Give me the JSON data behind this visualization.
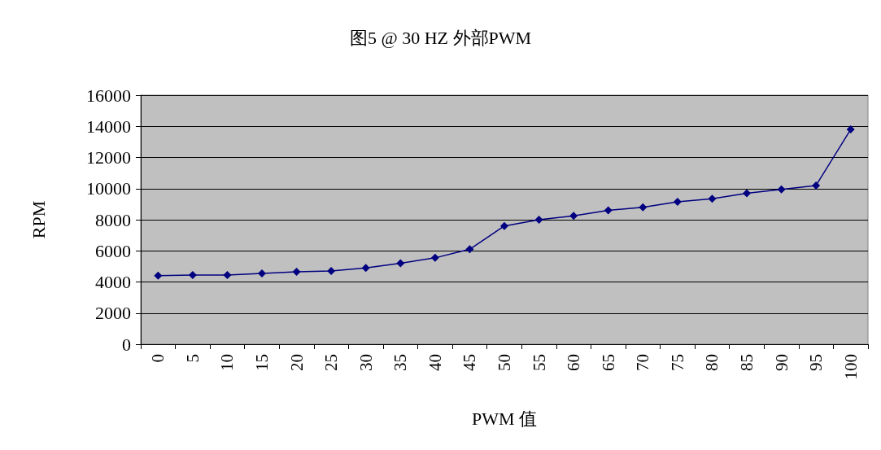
{
  "chart_data": {
    "type": "line",
    "title": "图5 @ 30 HZ 外部PWM",
    "xlabel": "PWM 值",
    "ylabel": "RPM",
    "categories": [
      "0",
      "5",
      "10",
      "15",
      "20",
      "25",
      "30",
      "35",
      "40",
      "45",
      "50",
      "55",
      "60",
      "65",
      "70",
      "75",
      "80",
      "85",
      "90",
      "95",
      "100"
    ],
    "series": [
      {
        "color": "#000080",
        "values": [
          4400,
          4450,
          4450,
          4550,
          4650,
          4700,
          4900,
          5200,
          5550,
          6100,
          7600,
          8000,
          8250,
          8600,
          8800,
          9150,
          9350,
          9700,
          9950,
          10200,
          13800
        ]
      }
    ],
    "ylim": [
      0,
      16000
    ],
    "yticks": [
      0,
      2000,
      4000,
      6000,
      8000,
      10000,
      12000,
      14000,
      16000
    ],
    "grid": "y",
    "marker": "diamond",
    "line_style": "solid"
  }
}
